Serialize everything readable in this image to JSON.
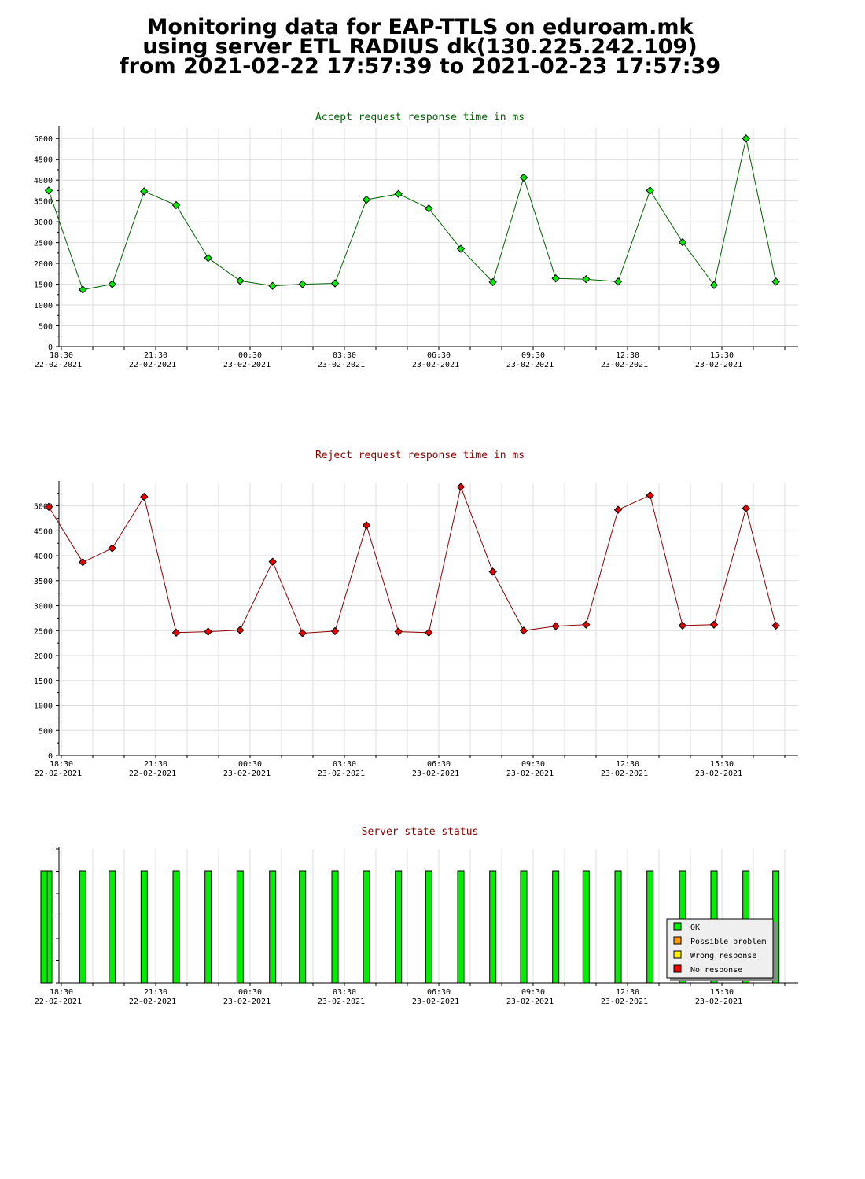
{
  "header": {
    "line1": "Monitoring data for EAP-TTLS on eduroam.mk",
    "line2": "using server ETL RADIUS dk(130.225.242.109)",
    "line3": "from 2021-02-22 17:57:39 to 2021-02-23 17:57:39"
  },
  "x_ticks": [
    {
      "time": "18:30",
      "date": "22-02-2021"
    },
    {
      "time": "21:30",
      "date": "22-02-2021"
    },
    {
      "time": "00:30",
      "date": "23-02-2021"
    },
    {
      "time": "03:30",
      "date": "23-02-2021"
    },
    {
      "time": "06:30",
      "date": "23-02-2021"
    },
    {
      "time": "09:30",
      "date": "23-02-2021"
    },
    {
      "time": "12:30",
      "date": "23-02-2021"
    },
    {
      "time": "15:30",
      "date": "23-02-2021"
    }
  ],
  "colors": {
    "accept_title": "#006400",
    "reject_title": "#8b0000",
    "status_title": "#8b0000",
    "accept_line": "#006400",
    "reject_line": "#8b0000",
    "ok": "#00ee00",
    "possible_problem": "#ff9900",
    "wrong_response": "#ffee00",
    "no_response": "#ee0000",
    "grid": "#dddddd"
  },
  "chart_data": [
    {
      "type": "line",
      "title": "Accept request response time in ms",
      "yticks": [
        0,
        500,
        1000,
        1500,
        2000,
        2500,
        3000,
        3500,
        4000,
        4500,
        5000
      ],
      "ylim": [
        0,
        5250
      ],
      "x": [
        "18:06",
        "19:11",
        "20:07",
        "21:08",
        "22:09",
        "23:10",
        "00:11",
        "01:13",
        "02:10",
        "03:12",
        "04:12",
        "05:13",
        "06:11",
        "07:12",
        "08:13",
        "09:12",
        "10:13",
        "11:11",
        "12:12",
        "13:13",
        "14:15",
        "15:15",
        "16:16",
        "17:13"
      ],
      "values": [
        3750,
        1370,
        1500,
        3730,
        3400,
        2130,
        1580,
        1460,
        1500,
        1520,
        3530,
        3670,
        3320,
        2350,
        1550,
        4060,
        1640,
        1620,
        1560,
        3750,
        2510,
        1480,
        5000,
        1560
      ],
      "grid": true
    },
    {
      "type": "line",
      "title": "Reject request response time in ms",
      "yticks": [
        0,
        500,
        1000,
        1500,
        2000,
        2500,
        3000,
        3500,
        4000,
        4500,
        5000
      ],
      "ylim": [
        0,
        5450
      ],
      "x": [
        "18:06",
        "19:11",
        "20:07",
        "21:08",
        "22:09",
        "23:10",
        "00:11",
        "01:13",
        "02:10",
        "03:12",
        "04:12",
        "05:13",
        "06:11",
        "07:12",
        "08:13",
        "09:12",
        "10:13",
        "11:11",
        "12:12",
        "13:13",
        "14:15",
        "15:15",
        "16:16",
        "17:13"
      ],
      "values": [
        4980,
        3870,
        4150,
        5180,
        2460,
        2480,
        2510,
        3880,
        2450,
        2490,
        4610,
        2480,
        2460,
        5380,
        3680,
        2500,
        2590,
        2620,
        4920,
        5210,
        2600,
        2620,
        4950,
        2600
      ],
      "grid": true
    },
    {
      "type": "bar",
      "title": "Server state status",
      "x": [
        "18:06",
        "19:11",
        "20:07",
        "21:08",
        "22:09",
        "23:10",
        "00:11",
        "01:13",
        "02:10",
        "03:12",
        "04:12",
        "05:13",
        "06:11",
        "07:12",
        "08:13",
        "09:12",
        "10:13",
        "11:11",
        "12:12",
        "13:13",
        "14:15",
        "15:15",
        "16:16",
        "17:13",
        "17:57"
      ],
      "values": [
        "OK",
        "OK",
        "OK",
        "OK",
        "OK",
        "OK",
        "OK",
        "OK",
        "OK",
        "OK",
        "OK",
        "OK",
        "OK",
        "OK",
        "OK",
        "OK",
        "OK",
        "OK",
        "OK",
        "OK",
        "OK",
        "OK",
        "OK",
        "OK",
        "OK"
      ],
      "legend": [
        "OK",
        "Possible problem",
        "Wrong response",
        "No response"
      ],
      "legend_placement": "bottom-right"
    }
  ]
}
